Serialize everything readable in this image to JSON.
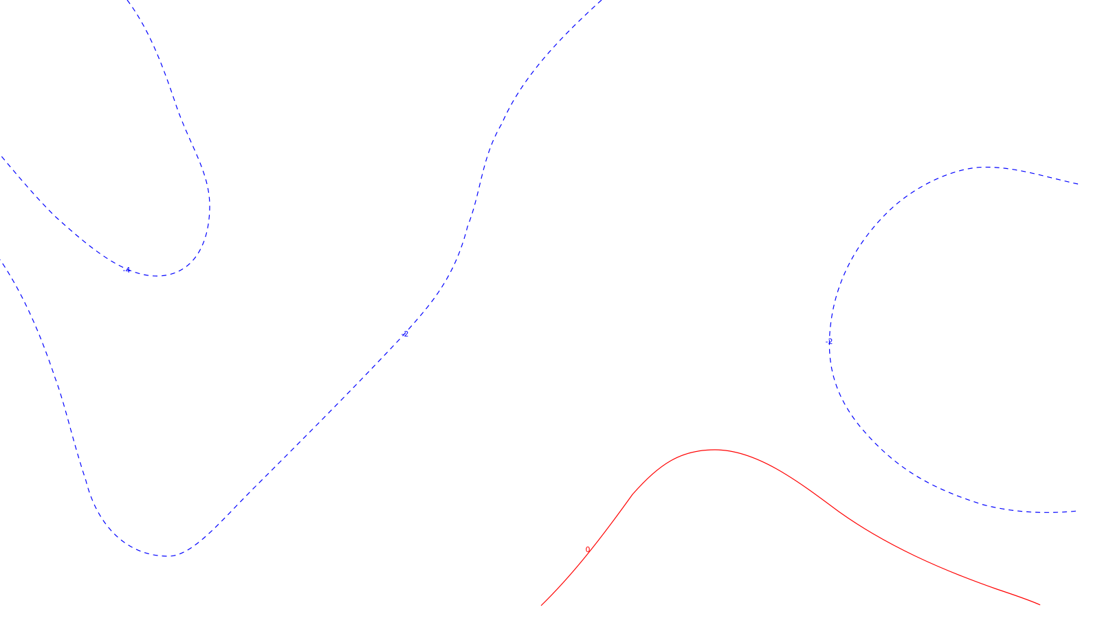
{
  "colors": {
    "negative_contour": "#0000ff",
    "zero_contour": "#ff0000",
    "background": "#ffffff"
  },
  "chart_data": {
    "type": "contour",
    "title": "",
    "xlabel": "",
    "ylabel": "",
    "grid": false,
    "legend": "none",
    "line_styles": {
      "negative": "dashed",
      "zero": "solid"
    },
    "contour_levels": [
      {
        "level": -4,
        "label": "-4",
        "color": "#0000ff",
        "dashed": true
      },
      {
        "level": -2,
        "label": "-2",
        "color": "#0000ff",
        "dashed": true
      },
      {
        "level": -2,
        "label": "-2",
        "color": "#0000ff",
        "dashed": true
      },
      {
        "level": 0,
        "label": "0",
        "color": "#ff0000",
        "dashed": false
      }
    ]
  }
}
